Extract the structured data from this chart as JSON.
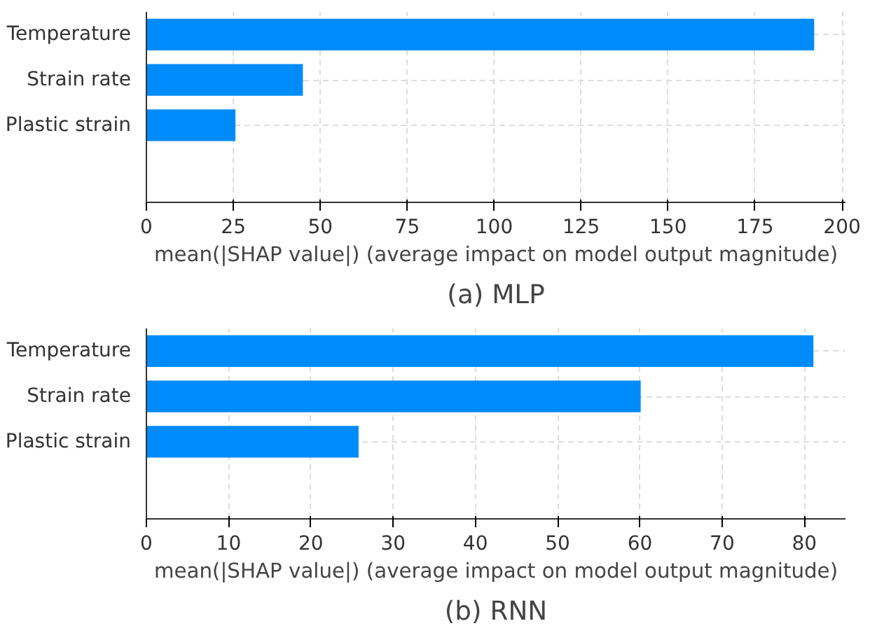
{
  "chart_data": [
    {
      "type": "bar",
      "orientation": "horizontal",
      "title": "(a) MLP",
      "categories": [
        "Temperature",
        "Strain rate",
        "Plastic strain"
      ],
      "values": [
        192,
        45,
        25.6
      ],
      "color": "#008bfb",
      "xlabel": "mean(|SHAP value|) (average impact on model output magnitude)",
      "xlim": [
        0,
        201
      ],
      "xticks": [
        0,
        25,
        50,
        75,
        100,
        125,
        150,
        175,
        200
      ],
      "grid": true
    },
    {
      "type": "bar",
      "orientation": "horizontal",
      "title": "(b) RNN",
      "categories": [
        "Temperature",
        "Strain rate",
        "Plastic strain"
      ],
      "values": [
        81.1,
        60.1,
        25.8
      ],
      "color": "#008bfb",
      "xlabel": "mean(|SHAP value|) (average impact on model output magnitude)",
      "xlim": [
        0,
        85
      ],
      "xticks": [
        0,
        10,
        20,
        30,
        40,
        50,
        60,
        70,
        80
      ],
      "grid": true
    }
  ]
}
